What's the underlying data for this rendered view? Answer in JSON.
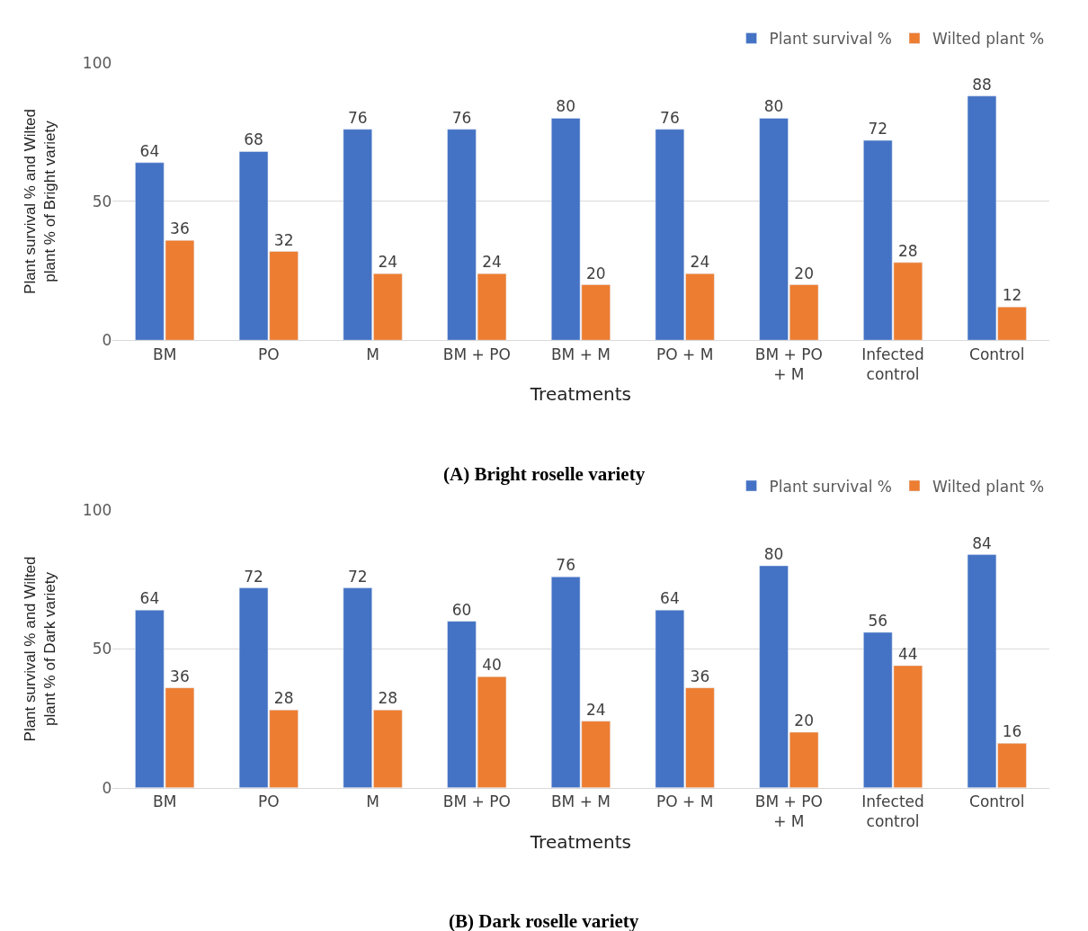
{
  "chart_data": [
    {
      "type": "bar",
      "title": "(A) Bright roselle variety",
      "xlabel": "Treatments",
      "ylabel": "Plant survival % and Wilted plant % of Bright variety",
      "categories": [
        "BM",
        "PO",
        "M",
        "BM + PO",
        "BM + M",
        "PO + M",
        "BM + PO + M",
        "Infected control",
        "Control"
      ],
      "series": [
        {
          "name": "Plant survival %",
          "color": "#4472c4",
          "values": [
            64,
            68,
            76,
            76,
            80,
            76,
            80,
            72,
            88
          ]
        },
        {
          "name": "Wilted plant %",
          "color": "#ed7d31",
          "values": [
            36,
            32,
            24,
            24,
            20,
            24,
            20,
            28,
            12
          ]
        }
      ],
      "ylim": [
        0,
        100
      ],
      "yticks": [
        0,
        50,
        100
      ],
      "grid": "y",
      "legend": "top right",
      "data_labels": true
    },
    {
      "type": "bar",
      "title": "(B) Dark roselle variety",
      "xlabel": "Treatments",
      "ylabel": "Plant survival % and Wilted plant % of Dark variety",
      "categories": [
        "BM",
        "PO",
        "M",
        "BM + PO",
        "BM + M",
        "PO + M",
        "BM + PO + M",
        "Infected control",
        "Control"
      ],
      "series": [
        {
          "name": "Plant survival %",
          "color": "#4472c4",
          "values": [
            64,
            72,
            72,
            60,
            76,
            64,
            80,
            56,
            84
          ]
        },
        {
          "name": "Wilted plant %",
          "color": "#ed7d31",
          "values": [
            36,
            28,
            28,
            40,
            24,
            36,
            20,
            44,
            16
          ]
        }
      ],
      "ylim": [
        0,
        100
      ],
      "yticks": [
        0,
        50,
        100
      ],
      "grid": "y",
      "legend": "top right",
      "data_labels": true
    }
  ]
}
